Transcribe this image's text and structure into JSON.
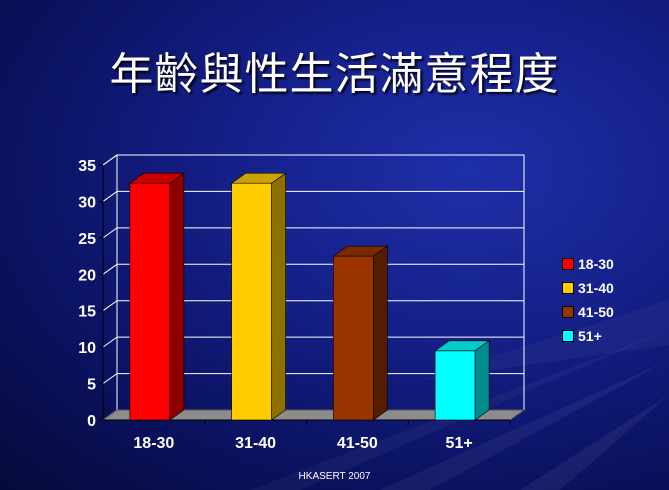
{
  "title": "年齡與性生活滿意程度",
  "footer": "HKASERT 2007",
  "chart_data": {
    "type": "bar",
    "categories": [
      "18-30",
      "31-40",
      "41-50",
      "51+"
    ],
    "values": [
      32.5,
      32.5,
      22.5,
      9.5
    ],
    "colors": [
      "#ff0000",
      "#ffcc00",
      "#993300",
      "#00ffff"
    ],
    "ylim": [
      0,
      35
    ],
    "yticks": [
      "0",
      "5",
      "10",
      "15",
      "20",
      "25",
      "30",
      "35"
    ],
    "grid": true,
    "legend_position": "right",
    "legend": [
      "18-30",
      "31-40",
      "41-50",
      "51+"
    ]
  }
}
